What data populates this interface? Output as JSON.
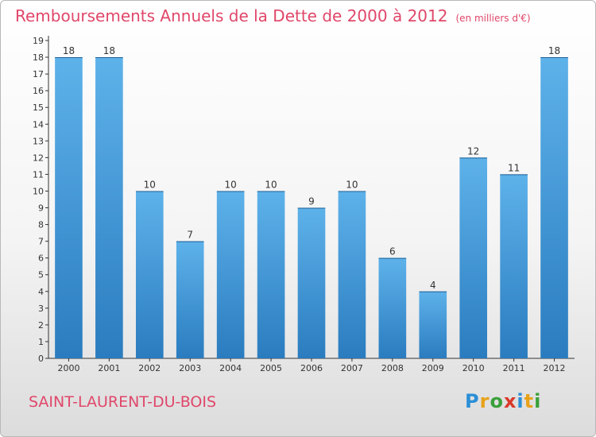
{
  "header": {
    "title": "Remboursements Annuels de la Dette de 2000 à 2012",
    "unit": "(en milliers d'€)"
  },
  "footer": {
    "town": "SAINT-LAURENT-DU-BOIS",
    "logo_letters": [
      "P",
      "r",
      "o",
      "x",
      "i",
      "t",
      "i"
    ]
  },
  "colors": {
    "title": "#e0476a",
    "bar_top": "#5eb2ea",
    "bar_bottom": "#2a7cbf",
    "axis": "#333333"
  },
  "chart_data": {
    "type": "bar",
    "title": "Remboursements Annuels de la Dette de 2000 à 2012",
    "categories": [
      "2000",
      "2001",
      "2002",
      "2003",
      "2004",
      "2005",
      "2006",
      "2007",
      "2008",
      "2009",
      "2010",
      "2011",
      "2012"
    ],
    "values": [
      18,
      18,
      10,
      7,
      10,
      10,
      9,
      10,
      6,
      4,
      12,
      11,
      18
    ],
    "ylim": [
      0,
      19
    ],
    "yticks": [
      "0",
      "1",
      "2",
      "3",
      "4",
      "5",
      "6",
      "7",
      "8",
      "9",
      "10",
      "11",
      "12",
      "13",
      "14",
      "15",
      "16",
      "17",
      "18",
      "19"
    ],
    "grid": false,
    "legend": "none"
  }
}
